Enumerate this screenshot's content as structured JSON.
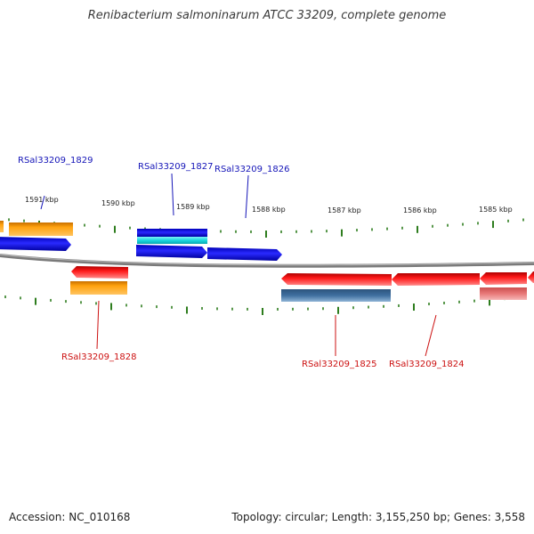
{
  "title": "Renibacterium salmoninarum ATCC 33209, complete genome",
  "accession": "Accession: NC_010168",
  "summary": "Topology: circular; Length: 3,155,250 bp; Genes: 3,558",
  "colors": {
    "backbone": "#8a8a8a",
    "tick": "#2e7d1e",
    "blue": "#1515e6",
    "cyan": "#19d7df",
    "orange": "#ffa20f",
    "red": "#f20f0f",
    "steel": "#3f6f9f",
    "pink": "#e87878",
    "blueLabel": "#1515b8",
    "redLabel": "#cc1010"
  },
  "ticks": [
    {
      "label": "1591 kbp"
    },
    {
      "label": "1590 kbp"
    },
    {
      "label": "1589 kbp"
    },
    {
      "label": "1588 kbp"
    },
    {
      "label": "1587 kbp"
    },
    {
      "label": "1586 kbp"
    },
    {
      "label": "1585 kbp"
    }
  ],
  "labels": [
    {
      "text": "RSal33209_1829",
      "strand": "forward"
    },
    {
      "text": "RSal33209_1827",
      "strand": "forward"
    },
    {
      "text": "RSal33209_1826",
      "strand": "forward"
    },
    {
      "text": "RSal33209_1828",
      "strand": "reverse"
    },
    {
      "text": "RSal33209_1825",
      "strand": "reverse"
    },
    {
      "text": "RSal33209_1824",
      "strand": "reverse"
    }
  ]
}
